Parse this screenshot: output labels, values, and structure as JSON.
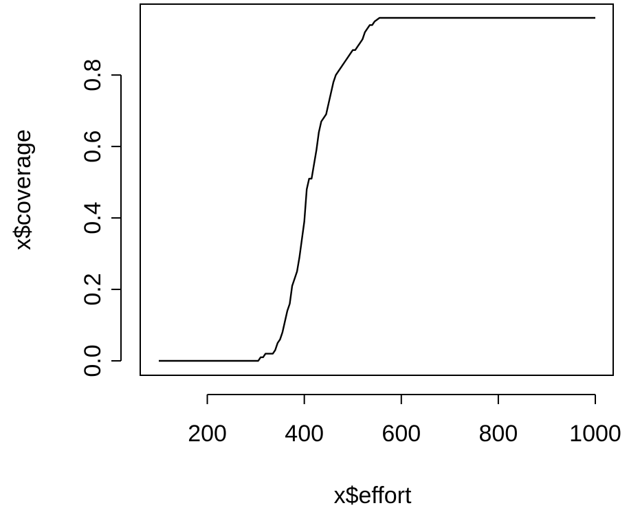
{
  "chart_data": {
    "type": "line",
    "title": "",
    "xlabel": "x$effort",
    "ylabel": "x$coverage",
    "xlim": [
      100,
      1000
    ],
    "ylim": [
      0,
      0.96
    ],
    "xticks": [
      200,
      400,
      600,
      800,
      1000
    ],
    "yticks": [
      0.0,
      0.2,
      0.4,
      0.6,
      0.8
    ],
    "xtick_labels": [
      "200",
      "400",
      "600",
      "800",
      "1000"
    ],
    "ytick_labels": [
      "0.0",
      "0.2",
      "0.4",
      "0.6",
      "0.8"
    ],
    "grid": false,
    "line_color": "#000000",
    "series": [
      {
        "x": [
          100,
          305,
          310,
          315,
          320,
          325,
          330,
          335,
          340,
          345,
          350,
          355,
          360,
          365,
          370,
          375,
          380,
          385,
          390,
          395,
          400,
          405,
          410,
          415,
          420,
          425,
          430,
          435,
          440,
          445,
          450,
          455,
          460,
          465,
          470,
          475,
          480,
          485,
          490,
          495,
          500,
          505,
          510,
          515,
          520,
          525,
          530,
          535,
          540,
          545,
          550,
          555,
          560,
          1000
        ],
        "y": [
          0,
          0,
          0.01,
          0.01,
          0.02,
          0.02,
          0.02,
          0.02,
          0.03,
          0.05,
          0.06,
          0.08,
          0.11,
          0.14,
          0.16,
          0.21,
          0.23,
          0.25,
          0.29,
          0.34,
          0.39,
          0.48,
          0.51,
          0.51,
          0.55,
          0.59,
          0.64,
          0.67,
          0.68,
          0.69,
          0.72,
          0.75,
          0.78,
          0.8,
          0.81,
          0.82,
          0.83,
          0.84,
          0.85,
          0.86,
          0.87,
          0.87,
          0.88,
          0.89,
          0.9,
          0.92,
          0.93,
          0.94,
          0.94,
          0.95,
          0.955,
          0.96,
          0.96,
          0.96
        ]
      }
    ]
  }
}
